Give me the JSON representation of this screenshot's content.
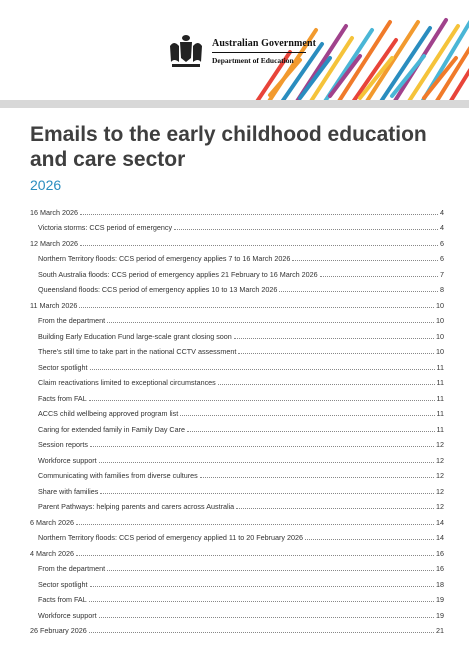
{
  "header": {
    "org_line1": "Australian Government",
    "org_line2": "Department of Education",
    "stripe_colors": [
      "#e8443a",
      "#f29a2e",
      "#2a8dbf",
      "#a0428c",
      "#f5c33a",
      "#4ab6d6",
      "#f07a2a"
    ]
  },
  "document": {
    "title": "Emails to the early childhood education and care sector",
    "year": "2026"
  },
  "toc": [
    {
      "label": "16 March 2026",
      "page": "4",
      "level": 1
    },
    {
      "label": "Victoria storms: CCS period of emergency",
      "page": "4",
      "level": 2
    },
    {
      "label": "12 March 2026",
      "page": "6",
      "level": 1
    },
    {
      "label": "Northern Territory floods: CCS period of emergency applies 7 to 16 March 2026",
      "page": "6",
      "level": 2
    },
    {
      "label": "South Australia floods: CCS period of emergency applies 21 February to 16 March 2026",
      "page": "7",
      "level": 2
    },
    {
      "label": "Queensland floods: CCS period of emergency applies 10 to 13 March 2026",
      "page": "8",
      "level": 2
    },
    {
      "label": "11 March 2026",
      "page": "10",
      "level": 1
    },
    {
      "label": "From the department",
      "page": "10",
      "level": 2
    },
    {
      "label": "Building Early Education Fund large-scale grant closing soon",
      "page": "10",
      "level": 2
    },
    {
      "label": "There's still time to take part in the national CCTV assessment",
      "page": "10",
      "level": 2
    },
    {
      "label": "Sector spotlight",
      "page": "11",
      "level": 2
    },
    {
      "label": "Claim reactivations limited to exceptional circumstances",
      "page": "11",
      "level": 2
    },
    {
      "label": "Facts from FAL",
      "page": "11",
      "level": 2
    },
    {
      "label": "ACCS child wellbeing approved program list",
      "page": "11",
      "level": 2
    },
    {
      "label": "Caring for extended family in Family Day Care",
      "page": "11",
      "level": 2
    },
    {
      "label": "Session reports",
      "page": "12",
      "level": 2
    },
    {
      "label": "Workforce support",
      "page": "12",
      "level": 2
    },
    {
      "label": "Communicating with families from diverse cultures",
      "page": "12",
      "level": 2
    },
    {
      "label": "Share with families",
      "page": "12",
      "level": 2
    },
    {
      "label": "Parent Pathways: helping parents and carers across Australia",
      "page": "12",
      "level": 2
    },
    {
      "label": "6 March 2026",
      "page": "14",
      "level": 1
    },
    {
      "label": "Northern Territory floods: CCS period of emergency applied 11 to 20 February 2026",
      "page": "14",
      "level": 2
    },
    {
      "label": "4 March 2026",
      "page": "16",
      "level": 1
    },
    {
      "label": "From the department",
      "page": "16",
      "level": 2
    },
    {
      "label": "Sector spotlight",
      "page": "18",
      "level": 2
    },
    {
      "label": "Facts from FAL",
      "page": "19",
      "level": 2
    },
    {
      "label": "Workforce support",
      "page": "19",
      "level": 2
    },
    {
      "label": "26 February 2026",
      "page": "21",
      "level": 1
    }
  ]
}
